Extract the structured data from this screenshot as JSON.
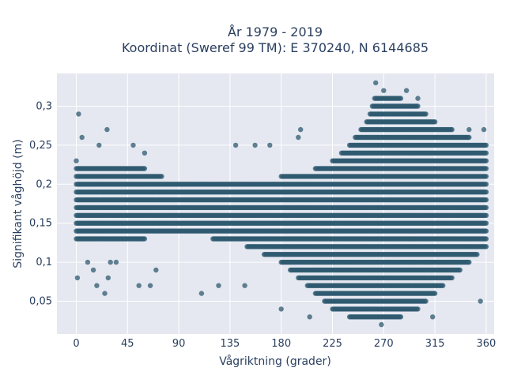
{
  "chart_data": {
    "type": "scatter",
    "title_line1": "År 1979 - 2019",
    "title_line2": "Koordinat (Sweref 99 TM): E 370240, N 6144685",
    "xlabel": "Vågriktning (grader)",
    "ylabel": "Signifikant våghöjd (m)",
    "xlim": [
      -17,
      367
    ],
    "ylim": [
      0.008,
      0.342
    ],
    "x_ticks": [
      0,
      45,
      90,
      135,
      180,
      225,
      270,
      315,
      360
    ],
    "x_tick_labels": [
      "0",
      "45",
      "90",
      "135",
      "180",
      "225",
      "270",
      "315",
      "360"
    ],
    "y_ticks": [
      0.05,
      0.1,
      0.15,
      0.2,
      0.25,
      0.3
    ],
    "y_tick_labels": [
      "0,05",
      "0,1",
      "0,15",
      "0,2",
      "0,25",
      "0,3"
    ],
    "grid": true,
    "legend": "none",
    "marker_color": "#2f5a70",
    "plot_bgcolor": "#e5e8f0",
    "envelope": {
      "x": [
        0,
        30,
        60,
        90,
        120,
        150,
        180,
        195,
        210,
        225,
        240,
        255,
        262,
        270,
        285,
        300,
        315,
        330,
        345,
        360
      ],
      "y_min": [
        0.13,
        0.13,
        0.13,
        0.14,
        0.13,
        0.12,
        0.1,
        0.08,
        0.06,
        0.04,
        0.03,
        0.03,
        0.03,
        0.03,
        0.03,
        0.04,
        0.06,
        0.08,
        0.1,
        0.12
      ],
      "y_max": [
        0.23,
        0.22,
        0.22,
        0.2,
        0.2,
        0.2,
        0.21,
        0.21,
        0.22,
        0.23,
        0.25,
        0.28,
        0.31,
        0.32,
        0.31,
        0.3,
        0.28,
        0.27,
        0.26,
        0.25
      ]
    },
    "outliers": [
      {
        "x": 2,
        "y": 0.29
      },
      {
        "x": 5,
        "y": 0.26
      },
      {
        "x": 1,
        "y": 0.08
      },
      {
        "x": 10,
        "y": 0.1
      },
      {
        "x": 15,
        "y": 0.09
      },
      {
        "x": 18,
        "y": 0.07
      },
      {
        "x": 25,
        "y": 0.06
      },
      {
        "x": 27,
        "y": 0.27
      },
      {
        "x": 28,
        "y": 0.08
      },
      {
        "x": 30,
        "y": 0.1
      },
      {
        "x": 35,
        "y": 0.1
      },
      {
        "x": 55,
        "y": 0.07
      },
      {
        "x": 65,
        "y": 0.07
      },
      {
        "x": 70,
        "y": 0.09
      },
      {
        "x": 110,
        "y": 0.06
      },
      {
        "x": 125,
        "y": 0.07
      },
      {
        "x": 140,
        "y": 0.25
      },
      {
        "x": 148,
        "y": 0.07
      },
      {
        "x": 157,
        "y": 0.25
      },
      {
        "x": 170,
        "y": 0.25
      },
      {
        "x": 180,
        "y": 0.04
      },
      {
        "x": 195,
        "y": 0.26
      },
      {
        "x": 197,
        "y": 0.27
      },
      {
        "x": 205,
        "y": 0.03
      },
      {
        "x": 263,
        "y": 0.33
      },
      {
        "x": 268,
        "y": 0.02
      },
      {
        "x": 290,
        "y": 0.32
      },
      {
        "x": 300,
        "y": 0.31
      },
      {
        "x": 313,
        "y": 0.03
      },
      {
        "x": 345,
        "y": 0.27
      },
      {
        "x": 355,
        "y": 0.05
      },
      {
        "x": 358,
        "y": 0.27
      },
      {
        "x": 50,
        "y": 0.25
      },
      {
        "x": 60,
        "y": 0.24
      },
      {
        "x": 20,
        "y": 0.25
      }
    ]
  }
}
